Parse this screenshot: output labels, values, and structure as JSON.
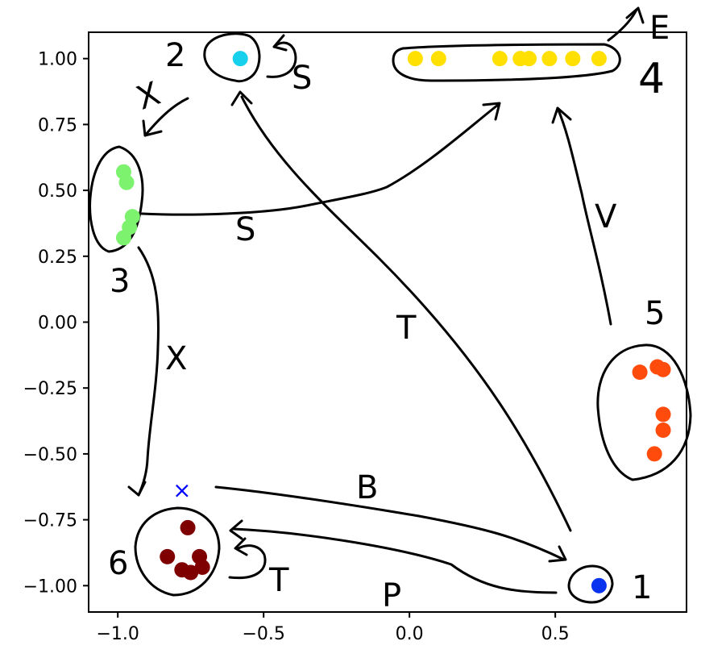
{
  "chart_data": {
    "type": "scatter",
    "xlim": [
      -1.1,
      0.95
    ],
    "ylim": [
      -1.1,
      1.1
    ],
    "x_ticks": [
      {
        "value": -1.0,
        "label": "−1.0"
      },
      {
        "value": -0.5,
        "label": "−0.5"
      },
      {
        "value": 0.0,
        "label": "0.0"
      },
      {
        "value": 0.5,
        "label": "0.5"
      }
    ],
    "y_ticks": [
      {
        "value": 1.0,
        "label": "1.00"
      },
      {
        "value": 0.75,
        "label": "0.75"
      },
      {
        "value": 0.5,
        "label": "0.50"
      },
      {
        "value": 0.25,
        "label": "0.25"
      },
      {
        "value": 0.0,
        "label": "0.00"
      },
      {
        "value": -0.25,
        "label": "−0.25"
      },
      {
        "value": -0.5,
        "label": "−0.50"
      },
      {
        "value": -0.75,
        "label": "−0.75"
      },
      {
        "value": -1.0,
        "label": "−1.00"
      }
    ],
    "grid": false,
    "clusters": [
      {
        "label": "1",
        "color": "#0a33f0",
        "points": [
          [
            0.65,
            -1.0
          ]
        ]
      },
      {
        "label": "2",
        "color": "#16d0ec",
        "points": [
          [
            -0.58,
            1.0
          ]
        ]
      },
      {
        "label": "3",
        "color": "#7cf26e",
        "points": [
          [
            -0.98,
            0.57
          ],
          [
            -0.97,
            0.53
          ],
          [
            -0.95,
            0.4
          ],
          [
            -0.96,
            0.36
          ],
          [
            -0.98,
            0.32
          ]
        ]
      },
      {
        "label": "4",
        "color": "#ffe000",
        "points": [
          [
            0.02,
            1.0
          ],
          [
            0.1,
            1.0
          ],
          [
            0.31,
            1.0
          ],
          [
            0.38,
            1.0
          ],
          [
            0.41,
            1.0
          ],
          [
            0.48,
            1.0
          ],
          [
            0.56,
            1.0
          ],
          [
            0.65,
            1.0
          ]
        ]
      },
      {
        "label": "5",
        "color": "#ff4c0c",
        "points": [
          [
            0.79,
            -0.19
          ],
          [
            0.85,
            -0.17
          ],
          [
            0.87,
            -0.18
          ],
          [
            0.87,
            -0.35
          ],
          [
            0.87,
            -0.41
          ],
          [
            0.84,
            -0.5
          ]
        ]
      },
      {
        "label": "6",
        "color": "#7f0000",
        "points": [
          [
            -0.76,
            -0.78
          ],
          [
            -0.83,
            -0.89
          ],
          [
            -0.72,
            -0.89
          ],
          [
            -0.78,
            -0.94
          ],
          [
            -0.75,
            -0.95
          ],
          [
            -0.71,
            -0.93
          ]
        ]
      }
    ],
    "marker_x": {
      "color": "#0000ff",
      "point": [
        -0.78,
        -0.64
      ]
    },
    "edges": [
      {
        "from": "2",
        "to": "2",
        "label": "S"
      },
      {
        "from": "2",
        "to": "3",
        "label": "X"
      },
      {
        "from": "3",
        "to": "4",
        "label": "S"
      },
      {
        "from": "3",
        "to": "6",
        "label": "X"
      },
      {
        "from": "4",
        "to": "4",
        "label": "E"
      },
      {
        "from": "5",
        "to": "4",
        "label": "V"
      },
      {
        "from": "1",
        "to": "2",
        "label": "T"
      },
      {
        "from": "6",
        "to": "1",
        "label": "B"
      },
      {
        "from": "1",
        "to": "6",
        "label": "P"
      },
      {
        "from": "6",
        "to": "6",
        "label": "T"
      }
    ]
  }
}
